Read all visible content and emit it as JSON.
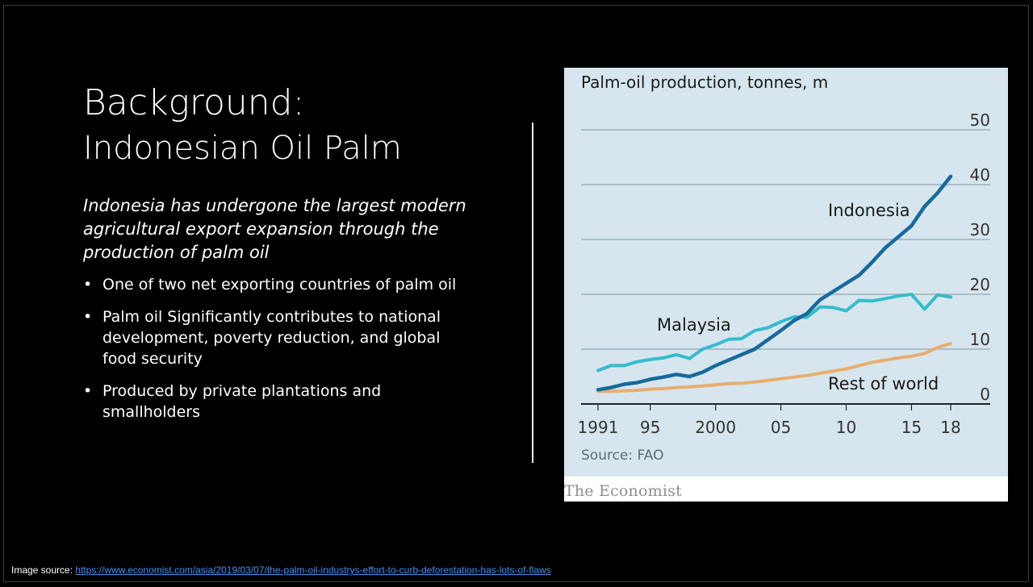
{
  "slide": {
    "title_line1": "Background:",
    "title_line2": "Indonesian Oil Palm",
    "lead": "Indonesia has undergone the largest modern agricultural export expansion through the production of palm oil",
    "bullets": [
      "One of two net exporting countries of palm oil",
      "Palm oil Significantly contributes to national development, poverty reduction, and global food security",
      "Produced by private plantations and smallholders"
    ],
    "source_label": "Image source:",
    "source_url": "https://www.economist.com/asia/2019/03/07/the-palm-oil-industrys-effort-to-curb-deforestation-has-lots-of-flaws"
  },
  "chart_data": {
    "type": "line",
    "title": "Palm-oil production, tonnes, m",
    "source": "Source: FAO",
    "brand": "The Economist",
    "x": [
      1991,
      1992,
      1993,
      1994,
      1995,
      1996,
      1997,
      1998,
      1999,
      2000,
      2001,
      2002,
      2003,
      2004,
      2005,
      2006,
      2007,
      2008,
      2009,
      2010,
      2011,
      2012,
      2013,
      2014,
      2015,
      2016,
      2017,
      2018
    ],
    "xtick_values": [
      1991,
      1995,
      2000,
      2005,
      2010,
      2015,
      2018
    ],
    "xtick_labels": [
      "1991",
      "95",
      "2000",
      "05",
      "10",
      "15",
      "18"
    ],
    "ylim": [
      0,
      50
    ],
    "yticks": [
      0,
      10,
      20,
      30,
      40,
      50
    ],
    "grid": true,
    "colors": {
      "Indonesia": "#166a9d",
      "Malaysia": "#36bccc",
      "Rest of world": "#e8ae6e"
    },
    "series": [
      {
        "name": "Indonesia",
        "values": [
          2.6,
          3.0,
          3.6,
          3.9,
          4.5,
          4.9,
          5.4,
          5.0,
          5.8,
          7.0,
          8.0,
          9.0,
          10.0,
          11.7,
          13.4,
          15.2,
          16.5,
          19.0,
          20.5,
          22.0,
          23.5,
          25.9,
          28.5,
          30.5,
          32.5,
          36.0,
          38.5,
          41.5
        ]
      },
      {
        "name": "Malaysia",
        "values": [
          6.1,
          7.0,
          7.0,
          7.7,
          8.1,
          8.4,
          9.0,
          8.3,
          10.0,
          10.8,
          11.8,
          11.9,
          13.4,
          13.9,
          15.0,
          15.9,
          15.8,
          17.7,
          17.6,
          17.0,
          18.9,
          18.8,
          19.2,
          19.7,
          20.0,
          17.3,
          19.9,
          19.5
        ]
      },
      {
        "name": "Rest of world",
        "values": [
          2.3,
          2.3,
          2.4,
          2.5,
          2.7,
          2.8,
          3.0,
          3.1,
          3.3,
          3.5,
          3.7,
          3.8,
          4.0,
          4.3,
          4.6,
          4.9,
          5.2,
          5.6,
          6.0,
          6.4,
          7.0,
          7.6,
          8.0,
          8.4,
          8.7,
          9.2,
          10.3,
          11.0
        ]
      }
    ],
    "labels": {
      "Indonesia": "Indonesia",
      "Malaysia": "Malaysia",
      "Rest of world": "Rest of world"
    }
  }
}
